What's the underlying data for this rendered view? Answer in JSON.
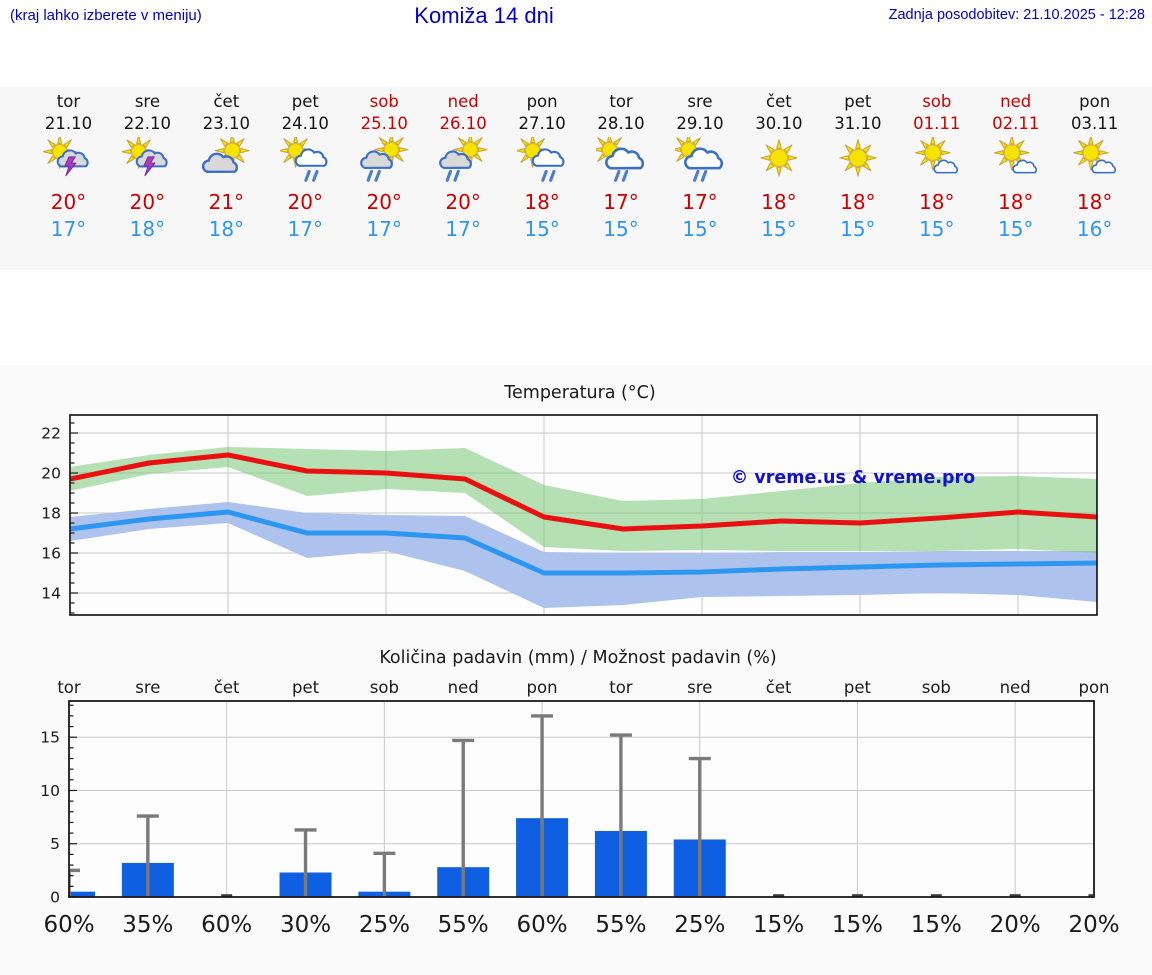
{
  "header": {
    "hint": "(kraj lahko izberete v meniju)",
    "title": "Komiža 14 dni",
    "last_update": "Zadnja posodobitev: 21.10.2025 - 12:28"
  },
  "colors": {
    "header_blue": "#0000CC",
    "high_red": "#CC0000",
    "low_blue": "#2E96F0",
    "weekend_red": "#CC0000",
    "prob_strong": "#17609F",
    "prob_light": "#56A7DB",
    "grid": "#c9c9c9",
    "spine": "#1a1a1a"
  },
  "forecast_strip": {
    "days": [
      {
        "name": "tor",
        "date": "21.10",
        "icon": "sun-storm",
        "high": "20°",
        "low": "17°",
        "weekend": false
      },
      {
        "name": "sre",
        "date": "22.10",
        "icon": "sun-storm",
        "high": "20°",
        "low": "18°",
        "weekend": false
      },
      {
        "name": "čet",
        "date": "23.10",
        "icon": "sun-cloud",
        "high": "21°",
        "low": "18°",
        "weekend": false
      },
      {
        "name": "pet",
        "date": "24.10",
        "icon": "sun-rain",
        "high": "20°",
        "low": "17°",
        "weekend": false
      },
      {
        "name": "sob",
        "date": "25.10",
        "icon": "sun-rain-gray",
        "high": "20°",
        "low": "17°",
        "weekend": true
      },
      {
        "name": "ned",
        "date": "26.10",
        "icon": "sun-rain-gray",
        "high": "20°",
        "low": "17°",
        "weekend": true
      },
      {
        "name": "pon",
        "date": "27.10",
        "icon": "sun-rain",
        "high": "18°",
        "low": "15°",
        "weekend": false
      },
      {
        "name": "tor",
        "date": "28.10",
        "icon": "sun-rain-big",
        "high": "17°",
        "low": "15°",
        "weekend": false
      },
      {
        "name": "sre",
        "date": "29.10",
        "icon": "sun-rain-big",
        "high": "17°",
        "low": "15°",
        "weekend": false
      },
      {
        "name": "čet",
        "date": "30.10",
        "icon": "sun",
        "high": "18°",
        "low": "15°",
        "weekend": false
      },
      {
        "name": "pet",
        "date": "31.10",
        "icon": "sun",
        "high": "18°",
        "low": "15°",
        "weekend": false
      },
      {
        "name": "sob",
        "date": "01.11",
        "icon": "sun-small-cloud",
        "high": "18°",
        "low": "15°",
        "weekend": true
      },
      {
        "name": "ned",
        "date": "02.11",
        "icon": "sun-small-cloud",
        "high": "18°",
        "low": "15°",
        "weekend": true
      },
      {
        "name": "pon",
        "date": "03.11",
        "icon": "sun-small-cloud",
        "high": "18°",
        "low": "16°",
        "weekend": false
      }
    ]
  },
  "chart_data": [
    {
      "type": "line",
      "title": "Temperatura (°C)",
      "watermark": "© vreme.us & vreme.pro",
      "x_labels": [
        "tor 21.10",
        "sre 22.10",
        "čet 23.10",
        "pet 24.10",
        "sob 25.10",
        "ned 26.10",
        "pon 27.10",
        "tor 28.10",
        "sre 29.10",
        "čet 30.10",
        "pet 31.10",
        "sob 01.11",
        "ned 02.11",
        "pon 03.11"
      ],
      "ylim": [
        12.9,
        22.9
      ],
      "yticks": [
        14,
        16,
        18,
        20,
        22
      ],
      "grid_vertical_at": [
        2,
        4,
        6,
        8,
        10,
        12
      ],
      "series": [
        {
          "name": "min-temperature",
          "color": "#2D96F0",
          "values": [
            17.2,
            17.7,
            18.05,
            17.0,
            17.0,
            16.75,
            15.0,
            15.0,
            15.05,
            15.2,
            15.3,
            15.4,
            15.45,
            15.5
          ]
        },
        {
          "name": "max-temperature",
          "color": "#E81010",
          "values": [
            19.7,
            20.5,
            20.9,
            20.1,
            20.0,
            19.7,
            17.8,
            17.2,
            17.35,
            17.6,
            17.5,
            17.75,
            18.05,
            17.8
          ]
        }
      ],
      "bands": [
        {
          "name": "min-temperature-range",
          "color": "#ADC2EC",
          "opacity": 1,
          "upper": [
            17.8,
            18.2,
            18.55,
            18.0,
            17.9,
            17.85,
            16.05,
            16.0,
            16.0,
            16.05,
            16.05,
            16.1,
            16.1,
            16.1
          ],
          "lower": [
            16.6,
            17.2,
            17.5,
            15.75,
            16.1,
            15.1,
            13.25,
            13.4,
            13.8,
            13.85,
            13.9,
            14.0,
            13.9,
            13.55
          ]
        },
        {
          "name": "max-temperature-range",
          "color": "#79C979",
          "opacity": 0.55,
          "upper": [
            20.3,
            20.9,
            21.3,
            21.2,
            21.1,
            21.25,
            19.4,
            18.6,
            18.7,
            19.1,
            19.5,
            19.8,
            19.85,
            19.7
          ],
          "lower": [
            19.1,
            19.95,
            20.3,
            18.85,
            19.2,
            19.0,
            16.3,
            16.1,
            16.15,
            16.1,
            16.1,
            16.1,
            16.2,
            16.0
          ]
        }
      ]
    },
    {
      "type": "bar",
      "title": "Količina padavin (mm) / Možnost padavin (%)",
      "categories": [
        "tor",
        "sre",
        "čet",
        "pet",
        "sob",
        "ned",
        "pon",
        "tor",
        "sre",
        "čet",
        "pet",
        "sob",
        "ned",
        "pon"
      ],
      "values": [
        0.5,
        3.2,
        0,
        2.3,
        0.5,
        2.8,
        7.4,
        6.2,
        5.4,
        0,
        0,
        0,
        0,
        0
      ],
      "whisker_max": [
        2.5,
        7.6,
        null,
        6.3,
        4.1,
        14.7,
        17.0,
        15.2,
        13.0,
        null,
        null,
        null,
        null,
        null
      ],
      "probability": [
        "60%",
        "35%",
        "60%",
        "30%",
        "25%",
        "55%",
        "60%",
        "55%",
        "25%",
        "15%",
        "15%",
        "15%",
        "20%",
        "20%"
      ],
      "probability_strong": [
        true,
        false,
        true,
        false,
        false,
        true,
        true,
        true,
        false,
        false,
        false,
        false,
        false,
        false
      ],
      "yticks": [
        0,
        5,
        10,
        15
      ],
      "ylim": [
        0,
        18.4
      ],
      "grid_vertical_at": [
        2,
        4,
        6,
        8,
        10,
        12
      ],
      "bar_color": "#0E5FE2",
      "whisker_color": "#7A7A7A",
      "zero_marker_color": "#3A3A3A"
    }
  ]
}
